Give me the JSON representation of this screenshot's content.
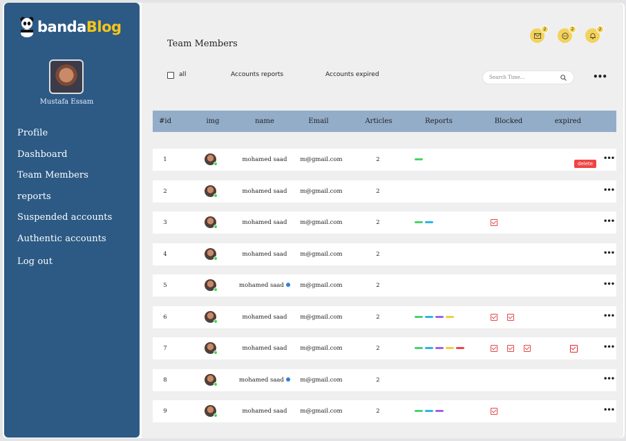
{
  "app": {
    "logo_part1": "banda",
    "logo_part2": "Blog",
    "brand_color": "#f5c518"
  },
  "sidebar": {
    "user_name": "Mustafa Essam",
    "items": [
      {
        "label": "Profile"
      },
      {
        "label": "Dashboard"
      },
      {
        "label": "Team Members"
      },
      {
        "label": "reports"
      },
      {
        "label": "Suspended accounts"
      },
      {
        "label": "Authentic accounts"
      },
      {
        "label": "Log out"
      }
    ]
  },
  "header": {
    "title": "Team Members",
    "icons": [
      {
        "name": "mail-icon",
        "badge": "2"
      },
      {
        "name": "chat-icon",
        "badge": "2"
      },
      {
        "name": "bell-icon",
        "badge": "2"
      }
    ]
  },
  "filters": {
    "all_label": "all",
    "reports_label": "Accounts reports",
    "expired_label": "Accounts expired",
    "search_placeholder": "Search Time..."
  },
  "table": {
    "columns": [
      "#id",
      "img",
      "name",
      "Email",
      "Articles",
      "Reports",
      "Blocked",
      "expired"
    ],
    "delete_label": "delete",
    "report_colors": {
      "green": "#4ad36a",
      "blue": "#2ab6e8",
      "purple": "#a45ee0",
      "yellow": "#f2cf3c",
      "red": "#ef4444"
    },
    "rows": [
      {
        "id": "1",
        "name": "mohamed saad",
        "verified": false,
        "email": "m@gmail.com",
        "articles": "2",
        "reports": [
          "green"
        ],
        "blocked": 0,
        "expired": false,
        "delete": true
      },
      {
        "id": "2",
        "name": "mohamed saad",
        "verified": false,
        "email": "m@gmail.com",
        "articles": "2",
        "reports": [],
        "blocked": 0,
        "expired": false,
        "delete": false
      },
      {
        "id": "3",
        "name": "mohamed saad",
        "verified": false,
        "email": "m@gmail.com",
        "articles": "2",
        "reports": [
          "green",
          "blue"
        ],
        "blocked": 1,
        "expired": false,
        "delete": false
      },
      {
        "id": "4",
        "name": "mohamed saad",
        "verified": false,
        "email": "m@gmail.com",
        "articles": "2",
        "reports": [],
        "blocked": 0,
        "expired": false,
        "delete": false
      },
      {
        "id": "5",
        "name": "mohamed saad",
        "verified": true,
        "email": "m@gmail.com",
        "articles": "2",
        "reports": [],
        "blocked": 0,
        "expired": false,
        "delete": false
      },
      {
        "id": "6",
        "name": "mohamed saad",
        "verified": false,
        "email": "m@gmail.com",
        "articles": "2",
        "reports": [
          "green",
          "blue",
          "purple",
          "yellow"
        ],
        "blocked": 2,
        "expired": false,
        "delete": false
      },
      {
        "id": "7",
        "name": "mohamed saad",
        "verified": false,
        "email": "m@gmail.com",
        "articles": "2",
        "reports": [
          "green",
          "blue",
          "purple",
          "yellow",
          "red"
        ],
        "blocked": 3,
        "expired": true,
        "delete": false
      },
      {
        "id": "8",
        "name": "mohamed saad",
        "verified": true,
        "email": "m@gmail.com",
        "articles": "2",
        "reports": [],
        "blocked": 0,
        "expired": false,
        "delete": false
      },
      {
        "id": "9",
        "name": "mohamed saad",
        "verified": false,
        "email": "m@gmail.com",
        "articles": "2",
        "reports": [
          "green",
          "blue",
          "purple"
        ],
        "blocked": 1,
        "expired": false,
        "delete": false
      }
    ]
  }
}
